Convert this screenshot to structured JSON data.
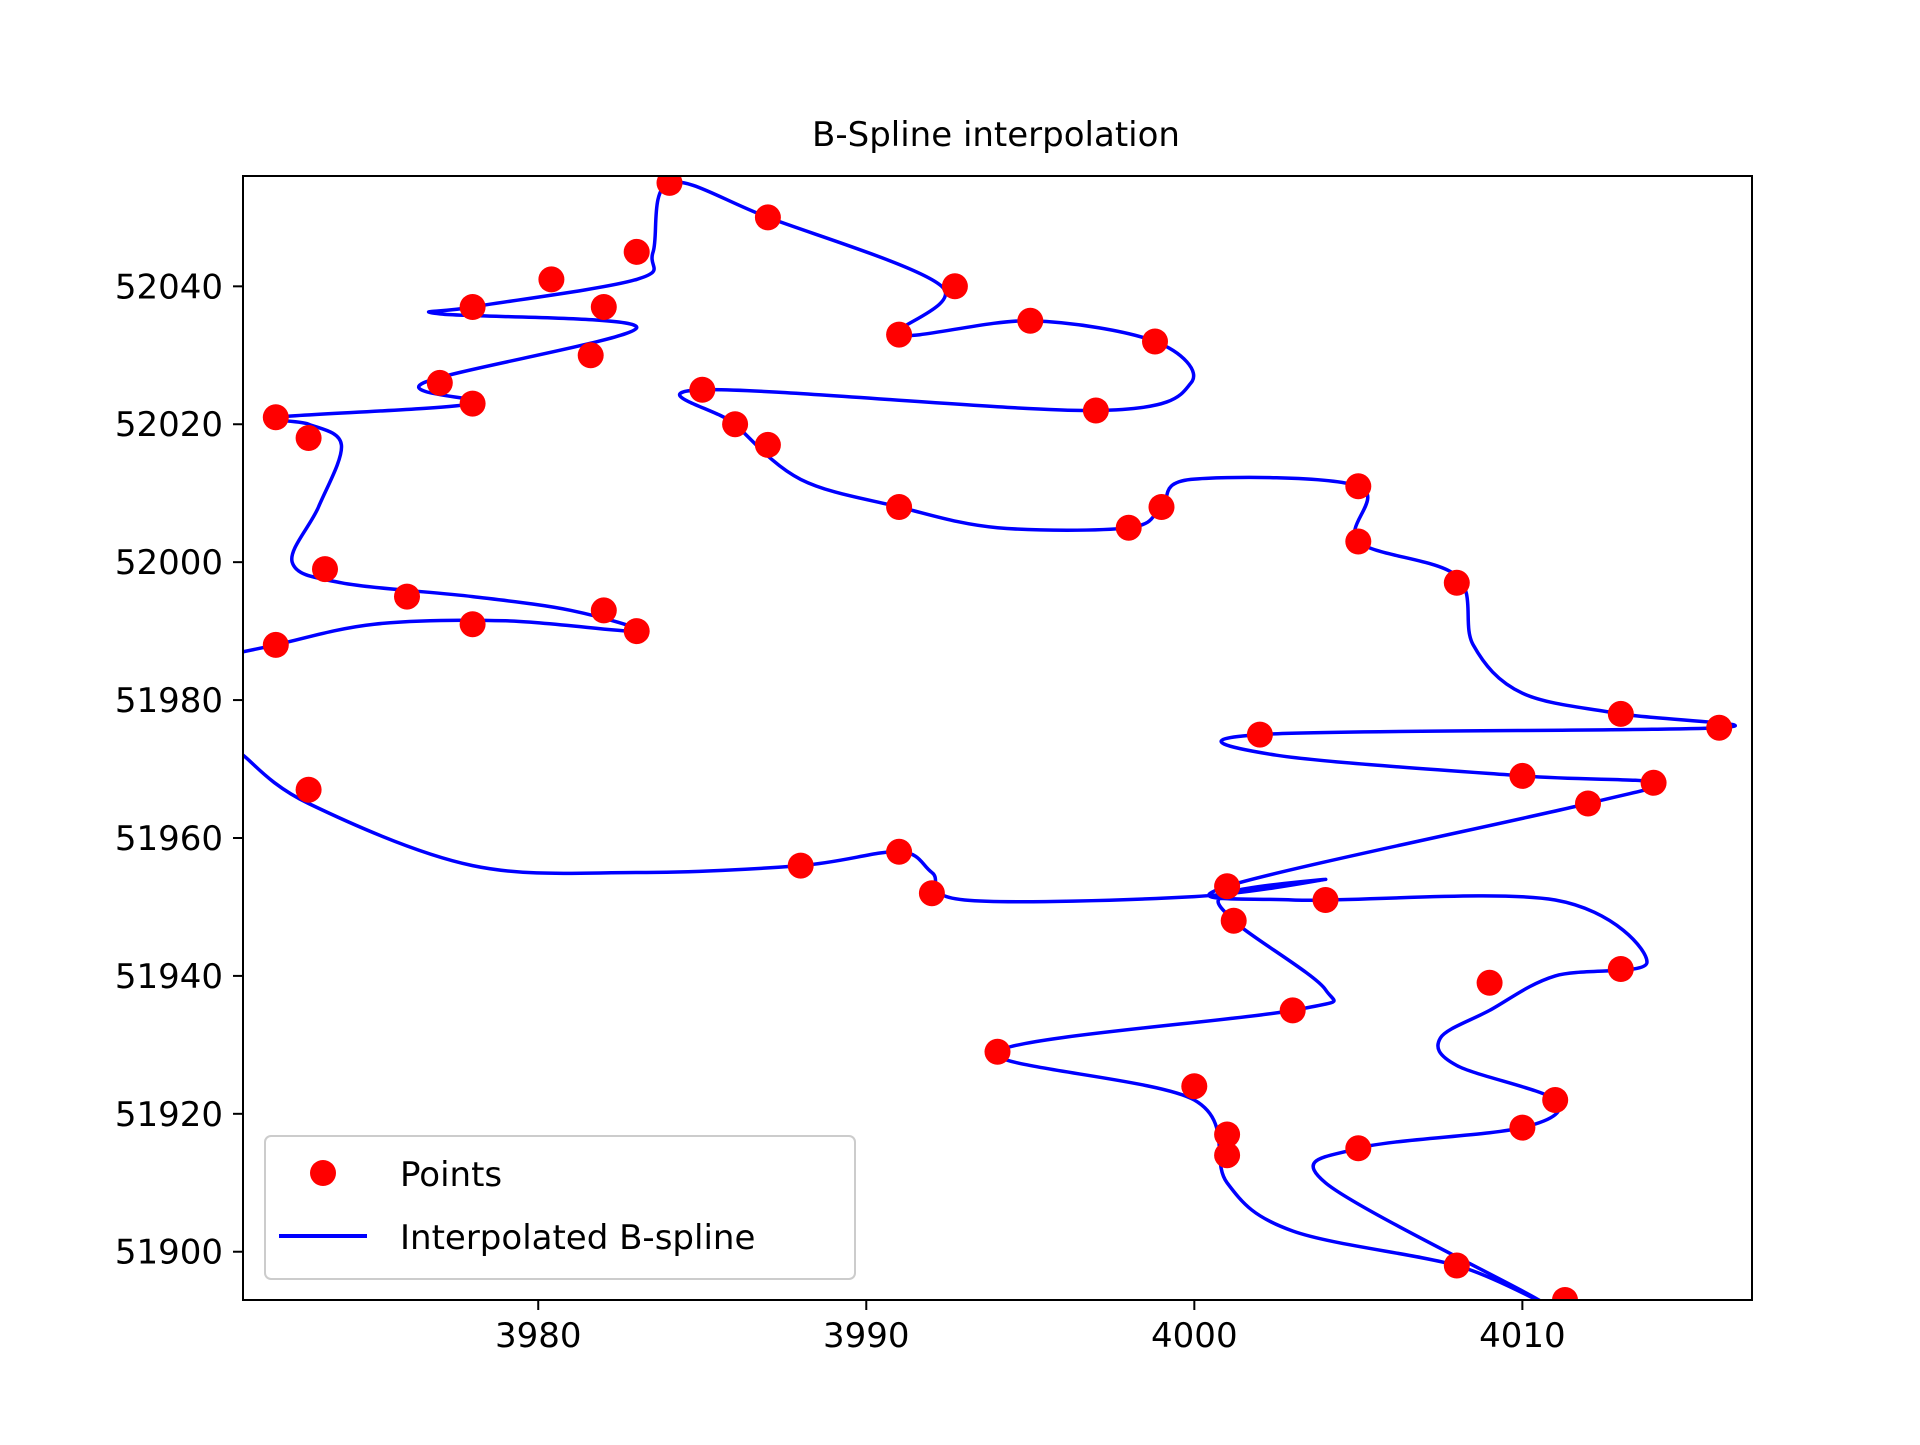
{
  "chart_data": {
    "type": "scatter",
    "title": "B-Spline interpolation",
    "xlabel": "",
    "ylabel": "",
    "xlim": [
      3971,
      4017
    ],
    "ylim": [
      51893,
      52056
    ],
    "xticks": [
      3980,
      3990,
      4000,
      4010
    ],
    "yticks": [
      51900,
      51920,
      51940,
      51960,
      51980,
      52000,
      52020,
      52040
    ],
    "xtick_labels": [
      "3980",
      "3990",
      "4000",
      "4010"
    ],
    "ytick_labels": [
      "51900",
      "51920",
      "51940",
      "51960",
      "51980",
      "52000",
      "52020",
      "52040"
    ],
    "grid": false,
    "legend": {
      "placement": "lower-left",
      "entries": [
        {
          "label": "Points",
          "marker": "dot",
          "color": "#ff0000"
        },
        {
          "label": "Interpolated B-spline",
          "marker": "line",
          "color": "#0000ff"
        }
      ]
    },
    "series": [
      {
        "name": "Points",
        "kind": "scatter",
        "color": "#ff0000",
        "x": [
          3984,
          3987,
          3983,
          3980.4,
          3982,
          3978,
          3992.7,
          3991,
          3995,
          3998.8,
          3981.6,
          3977,
          3978,
          3985,
          3986,
          3987,
          3997,
          3972,
          3973,
          3991,
          3998,
          3999,
          4005,
          4005,
          3973.5,
          3976,
          3982,
          3978,
          3983,
          4008,
          3972,
          4013,
          4016,
          4002,
          4010,
          4014,
          4012,
          3973,
          3988,
          3991,
          3992,
          4001,
          4004,
          4001.2,
          4013,
          4009,
          4003,
          3994,
          4000,
          4011,
          4010,
          4001,
          4001,
          4005,
          4008,
          4011.3
        ],
        "y": [
          52055,
          52050,
          52045,
          52041,
          52037,
          52037,
          52040,
          52033,
          52035,
          52032,
          52030,
          52026,
          52023,
          52025,
          52020,
          52017,
          52022,
          52021,
          52018,
          52008,
          52005,
          52008,
          52011,
          52003,
          51999,
          51995,
          51993,
          51991,
          51990,
          51997,
          51988,
          51978,
          51976,
          51975,
          51969,
          51968,
          51965,
          51967,
          51956,
          51958,
          51952,
          51953,
          51951,
          51948,
          51941,
          51939,
          51935,
          51929,
          51924,
          51922,
          51918,
          51917,
          51914,
          51915,
          51898,
          51893
        ]
      },
      {
        "name": "Interpolated B-spline",
        "kind": "line",
        "color": "#0000ff",
        "x": [
          3971,
          3972,
          3975,
          3979,
          3983,
          3981,
          3978,
          3974,
          3972.5,
          3973.3,
          3974,
          3973,
          3972,
          3978,
          3976.5,
          3983,
          3977,
          3978,
          3983,
          3983.5,
          3984,
          3987,
          3992.3,
          3991,
          3995,
          3998.8,
          3999.9,
          3997,
          3985,
          3986,
          3988,
          3991,
          3994,
          3998,
          3999,
          3999.9,
          4005,
          4005,
          4008,
          4008.5,
          4010,
          4013,
          4016,
          4002,
          4002.5,
          4010,
          4014,
          4012,
          4001,
          4003,
          4011,
          4013.8,
          4011,
          4009,
          4007.5,
          4008,
          4011,
          4010,
          4005,
          4004,
          4010.5,
          4008,
          4003,
          4001,
          4000,
          3994,
          4003,
          4004,
          4001.2,
          4001,
          4004,
          4000,
          3993,
          3992,
          3991,
          3988,
          3983,
          3978,
          3973,
          3971
        ],
        "y": [
          51987,
          51988,
          51991,
          51991.5,
          51990,
          51993,
          51995,
          51997,
          52000,
          52008,
          52017,
          52020,
          52021,
          52023,
          52026,
          52034,
          52036,
          52037,
          52041,
          52045,
          52055,
          52050,
          52040,
          52033,
          52035,
          52032,
          52026,
          52022,
          52025,
          52020,
          52012,
          52008,
          52005,
          52005,
          52008,
          52012,
          52011,
          52003,
          51998,
          51988,
          51981,
          51978,
          51976,
          51975,
          51972,
          51969,
          51968,
          51965,
          51953,
          51951,
          51951,
          51942,
          51940,
          51935,
          51931,
          51927,
          51922,
          51918,
          51915,
          51910,
          51893,
          51898,
          51903,
          51910,
          51922,
          51929,
          51935,
          51938,
          51948,
          51952,
          51954,
          51951.5,
          51951,
          51955,
          51958,
          51956,
          51955,
          51956,
          51965,
          51972
        ]
      }
    ]
  }
}
